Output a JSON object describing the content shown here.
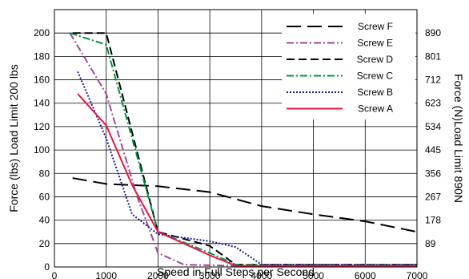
{
  "chart_data": {
    "type": "line",
    "xlabel": "Speed in Full Steps per Second",
    "ylabel": "Force (lbs) Load Limit 200 lbs",
    "ylabel_right": "Force (N)Load Limit 890N",
    "xlim": [
      0,
      7000
    ],
    "ylim": [
      0,
      220
    ],
    "x_ticks": [
      0,
      1000,
      2000,
      3000,
      4000,
      5000,
      6000,
      7000
    ],
    "y_ticks": [
      0,
      20,
      40,
      60,
      80,
      100,
      120,
      140,
      160,
      180,
      200
    ],
    "y_right_ticks": [
      {
        "value": 20,
        "label": "89"
      },
      {
        "value": 40,
        "label": "178"
      },
      {
        "value": 60,
        "label": "267"
      },
      {
        "value": 80,
        "label": "356"
      },
      {
        "value": 100,
        "label": "445"
      },
      {
        "value": 120,
        "label": "534"
      },
      {
        "value": 140,
        "label": "623"
      },
      {
        "value": 160,
        "label": "712"
      },
      {
        "value": 180,
        "label": "801"
      },
      {
        "value": 200,
        "label": "890"
      }
    ],
    "grid": true,
    "legend_position": "top-right",
    "series": [
      {
        "name": "Screw F",
        "color": "#000000",
        "dash": "long-dash",
        "points": [
          [
            350,
            76
          ],
          [
            1000,
            71
          ],
          [
            2000,
            69
          ],
          [
            3000,
            64
          ],
          [
            4000,
            52
          ],
          [
            5000,
            45
          ],
          [
            6000,
            39
          ],
          [
            7000,
            30
          ]
        ]
      },
      {
        "name": "Screw E",
        "color": "#a0479a",
        "dash": "dash-dot",
        "points": [
          [
            300,
            200
          ],
          [
            1000,
            148
          ],
          [
            1600,
            60
          ],
          [
            2000,
            12
          ],
          [
            2500,
            2
          ],
          [
            3500,
            1
          ],
          [
            7000,
            1
          ]
        ]
      },
      {
        "name": "Screw D",
        "color": "#000000",
        "dash": "dash",
        "points": [
          [
            350,
            200
          ],
          [
            1000,
            200
          ],
          [
            2000,
            30
          ],
          [
            3000,
            18
          ],
          [
            3500,
            2
          ],
          [
            7000,
            2
          ]
        ]
      },
      {
        "name": "Screw C",
        "color": "#009245",
        "dash": "dash-dot",
        "points": [
          [
            300,
            200
          ],
          [
            1000,
            190
          ],
          [
            2000,
            30
          ],
          [
            3000,
            12
          ],
          [
            3500,
            2
          ],
          [
            7000,
            2
          ]
        ]
      },
      {
        "name": "Screw B",
        "color": "#1c1c9c",
        "dash": "dot",
        "points": [
          [
            450,
            167
          ],
          [
            1000,
            110
          ],
          [
            1500,
            45
          ],
          [
            2000,
            28
          ],
          [
            3000,
            22
          ],
          [
            3500,
            17
          ],
          [
            4000,
            2
          ],
          [
            7000,
            2
          ]
        ]
      },
      {
        "name": "Screw A",
        "color": "#e8173f",
        "dash": "solid",
        "points": [
          [
            450,
            148
          ],
          [
            1000,
            121
          ],
          [
            1500,
            70
          ],
          [
            2000,
            30
          ],
          [
            3000,
            10
          ],
          [
            3500,
            1
          ],
          [
            7000,
            1
          ]
        ]
      }
    ]
  }
}
